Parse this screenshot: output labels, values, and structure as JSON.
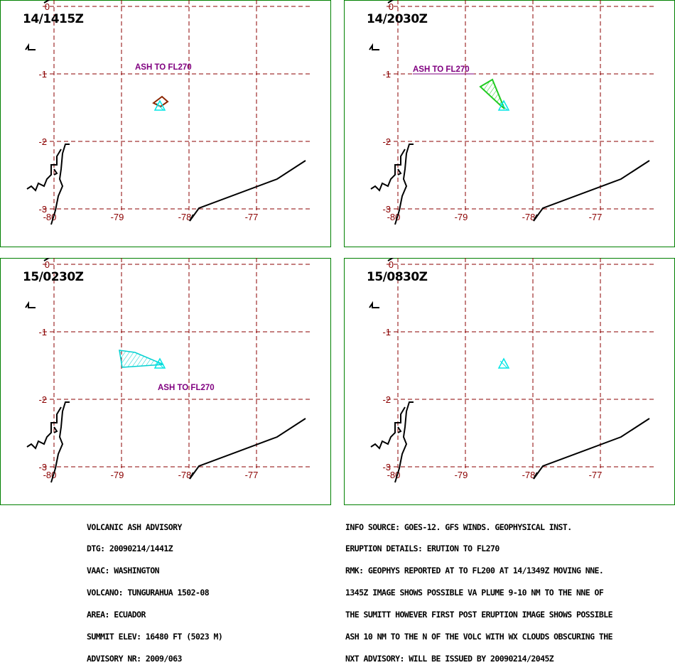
{
  "colors": {
    "frame": "#008000",
    "grid": "#8b0000",
    "coast": "#000000",
    "volcano": "#00e5e5",
    "label_text": "#800080",
    "panel1_polygon": "#8b2500",
    "panel2_polygon": "#22cc22",
    "panel3_polygon": "#00d0d0"
  },
  "grid_labels": {
    "lat": [
      "0",
      "-1",
      "-2",
      "-3"
    ],
    "lon": [
      "-80",
      "-79",
      "-78",
      "-77"
    ]
  },
  "panels": [
    {
      "time": "14/1415Z",
      "label": "ASH TO FL270",
      "polygon": "panel1"
    },
    {
      "time": "14/2030Z",
      "label": "ASH TO FL270",
      "polygon": "panel2"
    },
    {
      "time": "15/0230Z",
      "label": "ASH TO FL270",
      "polygon": "panel3"
    },
    {
      "time": "15/0830Z",
      "label": "",
      "polygon": "none"
    }
  ],
  "advisory_left": [
    "VOLCANIC ASH ADVISORY",
    "DTG: 20090214/1441Z",
    "VAAC: WASHINGTON",
    "VOLCANO: TUNGURAHUA 1502-08",
    "AREA: ECUADOR",
    "SUMMIT ELEV: 16480 FT (5023 M)",
    "ADVISORY NR: 2009/063"
  ],
  "advisory_right": [
    "INFO SOURCE: GOES-12. GFS WINDS. GEOPHYSICAL INST.",
    "ERUPTION DETAILS: ERUTION TO FL270",
    "RMK: GEOPHYS REPORTED AT TO FL200 AT 14/1349Z MOVING NNE.",
    "1345Z IMAGE SHOWS POSSIBLE VA PLUME 9-10 NM TO THE NNE OF",
    "THE SUMITT HOWEVER FIRST POST ERUPTION IMAGE SHOWS POSSIBLE",
    "ASH 10 NM TO THE N OF THE VOLC WITH WX CLOUDS OBSCURING THE",
    "NXT ADVISORY: WILL BE ISSUED BY 20090214/2045Z"
  ]
}
